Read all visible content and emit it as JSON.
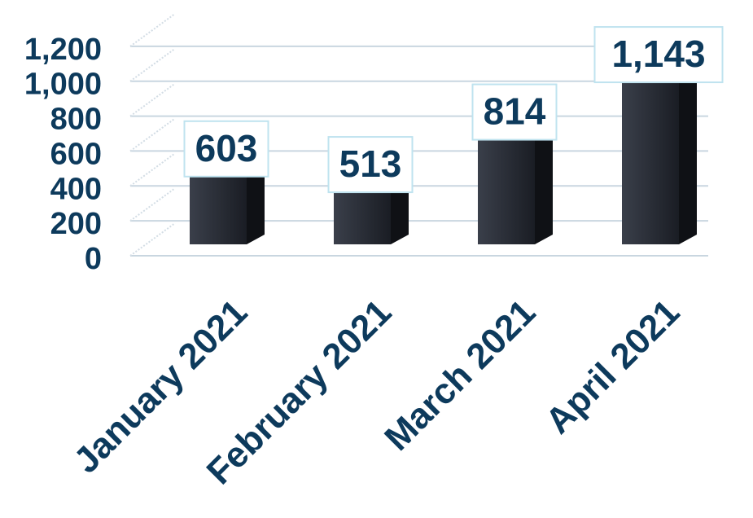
{
  "chart_data": {
    "type": "bar",
    "categories": [
      "January 2021",
      "February 2021",
      "March 2021",
      "April 2021"
    ],
    "values": [
      603,
      513,
      814,
      1143
    ],
    "value_labels": [
      "603",
      "513",
      "814",
      "1,143"
    ],
    "color": "#22262e",
    "ylim": [
      0,
      1400
    ],
    "yticks": [
      0,
      200,
      400,
      600,
      800,
      {
        "value": 1000,
        "label": "1,000"
      },
      {
        "value": 1200,
        "label": "1,200"
      }
    ],
    "grid": true
  }
}
